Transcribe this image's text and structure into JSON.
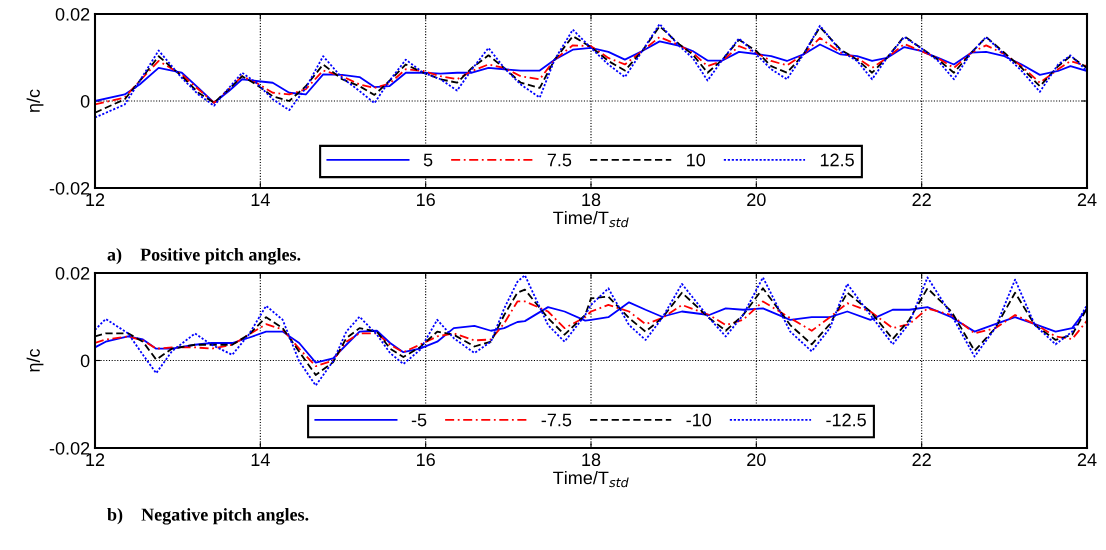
{
  "chart_data": [
    {
      "type": "line",
      "xlabel": "Time/T$_{std}$",
      "ylabel": "η/c",
      "annotations": [
        "a)    Positive pitch angles."
      ],
      "xlim": [
        12,
        24
      ],
      "xticks": [
        12,
        14,
        16,
        18,
        20,
        22,
        24
      ],
      "ylim": [
        -0.02,
        0.02
      ],
      "yticks": [
        -0.02,
        0,
        0.02
      ],
      "grid": true,
      "legend": "bottom",
      "x": [
        12.0,
        12.36,
        12.54,
        12.77,
        13.05,
        13.25,
        13.44,
        13.62,
        13.78,
        13.95,
        14.15,
        14.35,
        14.55,
        14.76,
        14.99,
        15.2,
        15.38,
        15.56,
        15.76,
        15.97,
        16.18,
        16.38,
        16.56,
        16.76,
        16.95,
        17.15,
        17.38,
        17.56,
        17.78,
        18.0,
        18.21,
        18.41,
        18.62,
        18.83,
        19.07,
        19.23,
        19.41,
        19.59,
        19.79,
        20.0,
        20.18,
        20.37,
        20.57,
        20.77,
        21.02,
        21.22,
        21.4,
        21.58,
        21.79,
        21.99,
        22.2,
        22.39,
        22.6,
        22.78,
        23.0,
        23.21,
        23.43,
        23.65,
        23.8,
        24.0
      ],
      "series": [
        {
          "name": "5",
          "color": "#0000ff",
          "line_style": "solid",
          "values": [
            0.0,
            0.0015,
            0.0038,
            0.0076,
            0.0065,
            0.003,
            -0.0004,
            0.0023,
            0.005,
            0.0046,
            0.0042,
            0.0019,
            0.0015,
            0.0061,
            0.006,
            0.0055,
            0.0032,
            0.0034,
            0.0065,
            0.0065,
            0.0063,
            0.0065,
            0.0065,
            0.0076,
            0.0073,
            0.007,
            0.007,
            0.0095,
            0.0118,
            0.0122,
            0.0113,
            0.0095,
            0.0115,
            0.0137,
            0.0127,
            0.0115,
            0.0093,
            0.0093,
            0.0113,
            0.0108,
            0.0103,
            0.0092,
            0.0107,
            0.013,
            0.0107,
            0.0103,
            0.0092,
            0.0099,
            0.0124,
            0.0115,
            0.0099,
            0.0084,
            0.0111,
            0.0113,
            0.0103,
            0.0084,
            0.006,
            0.0069,
            0.008,
            0.0069
          ]
        },
        {
          "name": "7.5",
          "color": "#ff0000",
          "line_style": "dashdot",
          "values": [
            -0.0008,
            0.0008,
            0.0046,
            0.0092,
            0.0061,
            0.0027,
            -0.0004,
            0.0027,
            0.0057,
            0.0042,
            0.0019,
            0.0015,
            0.0027,
            0.007,
            0.0057,
            0.0038,
            0.003,
            0.004,
            0.0073,
            0.0069,
            0.0057,
            0.005,
            0.0069,
            0.0084,
            0.0076,
            0.0057,
            0.005,
            0.0095,
            0.0128,
            0.0126,
            0.0099,
            0.0084,
            0.0115,
            0.0147,
            0.0128,
            0.0111,
            0.008,
            0.0092,
            0.0126,
            0.0111,
            0.0092,
            0.0082,
            0.0107,
            0.0145,
            0.0111,
            0.0099,
            0.0076,
            0.0099,
            0.0131,
            0.0115,
            0.0098,
            0.0076,
            0.0111,
            0.0128,
            0.0108,
            0.008,
            0.0042,
            0.0073,
            0.0092,
            0.008
          ]
        },
        {
          "name": "10",
          "color": "#000000",
          "line_style": "dashed",
          "values": [
            -0.0027,
            0.0004,
            0.0046,
            0.0103,
            0.0057,
            0.0019,
            -0.0004,
            0.0027,
            0.0057,
            0.0038,
            0.0011,
            0.0,
            0.0034,
            0.0084,
            0.005,
            0.0034,
            0.0014,
            0.0046,
            0.0084,
            0.0065,
            0.005,
            0.0042,
            0.0076,
            0.0105,
            0.0076,
            0.0042,
            0.003,
            0.0095,
            0.0149,
            0.0124,
            0.0092,
            0.007,
            0.0115,
            0.0172,
            0.013,
            0.0107,
            0.0065,
            0.0095,
            0.0141,
            0.0115,
            0.008,
            0.0065,
            0.0107,
            0.017,
            0.0118,
            0.0095,
            0.0065,
            0.0099,
            0.0149,
            0.0122,
            0.0095,
            0.0065,
            0.0111,
            0.0147,
            0.0111,
            0.0076,
            0.0034,
            0.008,
            0.0103,
            0.0076
          ]
        },
        {
          "name": "12.5",
          "color": "#0000ff",
          "line_style": "dotted",
          "values": [
            -0.0038,
            -0.0008,
            0.0046,
            0.0116,
            0.0053,
            0.0015,
            -0.0011,
            0.003,
            0.0065,
            0.0042,
            0.0004,
            -0.0021,
            0.003,
            0.0103,
            0.0053,
            0.0023,
            -0.0005,
            0.0046,
            0.0095,
            0.0065,
            0.005,
            0.0024,
            0.0073,
            0.0122,
            0.0076,
            0.0038,
            0.0008,
            0.0095,
            0.0164,
            0.0122,
            0.0084,
            0.0055,
            0.0115,
            0.0177,
            0.0126,
            0.0099,
            0.0047,
            0.0095,
            0.0144,
            0.0107,
            0.0073,
            0.005,
            0.0107,
            0.0173,
            0.0115,
            0.0092,
            0.005,
            0.0099,
            0.0147,
            0.0122,
            0.0092,
            0.005,
            0.0111,
            0.0147,
            0.0107,
            0.0069,
            0.0021,
            0.0084,
            0.0105,
            0.0069
          ]
        }
      ]
    },
    {
      "type": "line",
      "xlabel": "Time/T$_{std}$",
      "ylabel": "η/c",
      "annotations": [
        "b)    Negative pitch angles."
      ],
      "xlim": [
        12,
        24
      ],
      "xticks": [
        12,
        14,
        16,
        18,
        20,
        22,
        24
      ],
      "ylim": [
        -0.02,
        0.02
      ],
      "yticks": [
        -0.02,
        0,
        0.02
      ],
      "grid": true,
      "legend": "bottom",
      "x": [
        12.0,
        12.13,
        12.4,
        12.58,
        12.74,
        12.93,
        13.21,
        13.41,
        13.66,
        13.86,
        14.07,
        14.27,
        14.47,
        14.67,
        14.88,
        15.04,
        15.2,
        15.41,
        15.57,
        15.73,
        15.93,
        16.14,
        16.34,
        16.59,
        16.79,
        16.95,
        17.11,
        17.2,
        17.48,
        17.68,
        17.93,
        18.0,
        18.21,
        18.46,
        18.66,
        18.86,
        19.1,
        19.43,
        19.63,
        19.84,
        20.08,
        20.41,
        20.67,
        20.89,
        21.1,
        21.38,
        21.65,
        21.85,
        22.07,
        22.36,
        22.64,
        22.89,
        23.13,
        23.37,
        23.62,
        23.82,
        24.0
      ],
      "series": [
        {
          "name": "-5",
          "color": "#0000ff",
          "line_style": "solid",
          "values": [
            0.003,
            0.0043,
            0.0055,
            0.0048,
            0.0027,
            0.0027,
            0.0036,
            0.004,
            0.004,
            0.0052,
            0.0066,
            0.0066,
            0.004,
            -0.0005,
            0.0005,
            0.0036,
            0.0066,
            0.0068,
            0.004,
            0.0019,
            0.0027,
            0.0043,
            0.0074,
            0.0079,
            0.0068,
            0.0074,
            0.0088,
            0.009,
            0.0122,
            0.0112,
            0.0091,
            0.0093,
            0.0099,
            0.0133,
            0.0116,
            0.01,
            0.0112,
            0.0104,
            0.0119,
            0.0116,
            0.0119,
            0.0093,
            0.0099,
            0.0099,
            0.0112,
            0.0093,
            0.0116,
            0.0116,
            0.0122,
            0.0099,
            0.0066,
            0.0083,
            0.0099,
            0.0083,
            0.0066,
            0.0074,
            0.0119
          ]
        },
        {
          "name": "-7.5",
          "color": "#ff0000",
          "line_style": "dashdot",
          "values": [
            0.004,
            0.0048,
            0.0055,
            0.0046,
            0.0027,
            0.003,
            0.003,
            0.0027,
            0.0036,
            0.0059,
            0.0083,
            0.0071,
            0.0027,
            -0.0013,
            0.0,
            0.0043,
            0.0062,
            0.0062,
            0.0036,
            0.0019,
            0.0036,
            0.0055,
            0.0062,
            0.0046,
            0.0048,
            0.0085,
            0.0135,
            0.0135,
            0.0112,
            0.0074,
            0.0099,
            0.0112,
            0.0127,
            0.0112,
            0.0083,
            0.0097,
            0.0127,
            0.0104,
            0.0081,
            0.0093,
            0.0135,
            0.0097,
            0.0068,
            0.0099,
            0.0131,
            0.0112,
            0.0074,
            0.0083,
            0.0119,
            0.0104,
            0.0062,
            0.0074,
            0.0104,
            0.0083,
            0.0055,
            0.0049,
            0.0091
          ]
        },
        {
          "name": "-10",
          "color": "#000000",
          "line_style": "dashed",
          "values": [
            0.0055,
            0.0062,
            0.0062,
            0.0043,
            0.0002,
            0.0027,
            0.0036,
            0.0036,
            0.0036,
            0.0059,
            0.0099,
            0.0074,
            0.002,
            -0.0033,
            -0.0004,
            0.0051,
            0.0074,
            0.0066,
            0.0027,
            0.0008,
            0.003,
            0.0066,
            0.0059,
            0.0032,
            0.0043,
            0.0104,
            0.0155,
            0.0162,
            0.0097,
            0.0059,
            0.0104,
            0.0142,
            0.0146,
            0.0097,
            0.0066,
            0.0097,
            0.0155,
            0.0097,
            0.0068,
            0.0104,
            0.0165,
            0.0081,
            0.0037,
            0.0083,
            0.0155,
            0.0112,
            0.0049,
            0.0093,
            0.0165,
            0.0112,
            0.0022,
            0.0074,
            0.0155,
            0.0081,
            0.0047,
            0.0059,
            0.0119
          ]
        },
        {
          "name": "-12.5",
          "color": "#0000ff",
          "line_style": "dotted",
          "values": [
            0.007,
            0.0095,
            0.0062,
            0.0013,
            -0.0029,
            0.0021,
            0.0062,
            0.0036,
            0.0013,
            0.0059,
            0.0125,
            0.0093,
            -0.0002,
            -0.0057,
            -0.0002,
            0.0066,
            0.01,
            0.0059,
            0.0017,
            -0.0008,
            0.0024,
            0.0093,
            0.0051,
            0.0017,
            0.0043,
            0.0119,
            0.018,
            0.0195,
            0.0081,
            0.0043,
            0.0104,
            0.0127,
            0.0165,
            0.0081,
            0.0047,
            0.0097,
            0.0175,
            0.0097,
            0.0055,
            0.0104,
            0.019,
            0.0066,
            0.0021,
            0.0074,
            0.0175,
            0.0104,
            0.0037,
            0.0085,
            0.019,
            0.0104,
            0.0009,
            0.0074,
            0.0185,
            0.0081,
            0.0037,
            0.0066,
            0.0127
          ]
        }
      ]
    }
  ]
}
